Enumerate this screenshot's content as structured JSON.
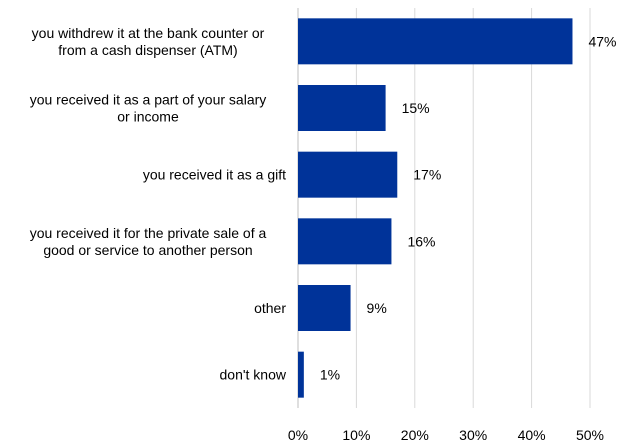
{
  "chart_data": {
    "type": "bar",
    "orientation": "horizontal",
    "categories": [
      [
        "you withdrew it at the bank counter or",
        "from a cash dispenser (ATM)"
      ],
      [
        "you received it as a part of your salary",
        "or income"
      ],
      [
        "you received it as a gift"
      ],
      [
        "you received it for the private sale of a",
        "good or service to another person"
      ],
      [
        "other"
      ],
      [
        "don't know"
      ]
    ],
    "values": [
      47,
      15,
      17,
      16,
      9,
      1
    ],
    "value_labels": [
      "47%",
      "15%",
      "17%",
      "16%",
      "9%",
      "1%"
    ],
    "xlim": [
      0,
      50
    ],
    "x_ticks": [
      "0%",
      "10%",
      "20%",
      "30%",
      "40%",
      "50%"
    ],
    "grid": true,
    "legend": "none",
    "bar_color": "#003399"
  }
}
